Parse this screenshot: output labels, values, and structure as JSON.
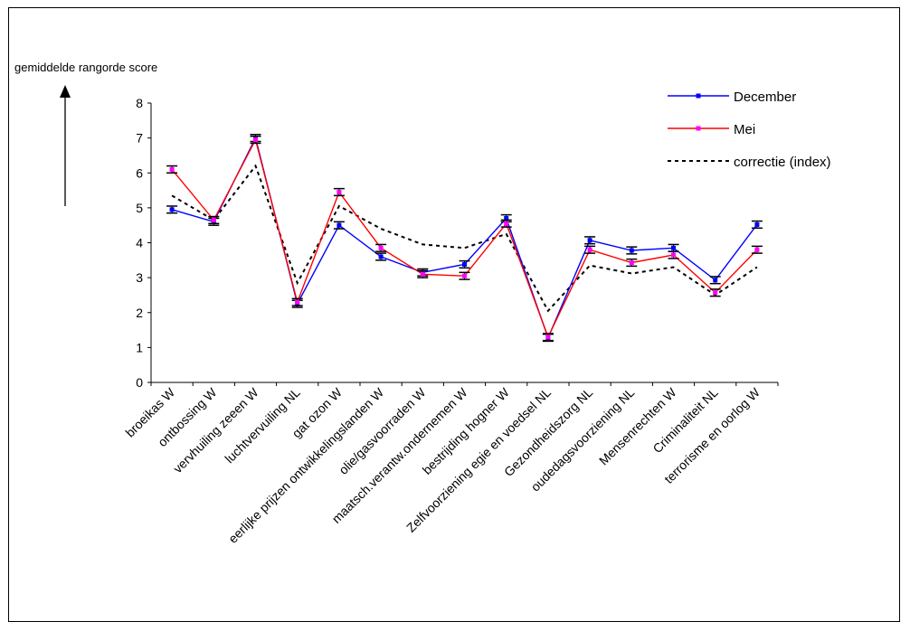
{
  "chart_data": {
    "type": "line",
    "ylabel": "gemiddelde rangorde score",
    "ylim": [
      0,
      8
    ],
    "yticks": [
      0,
      1,
      2,
      3,
      4,
      5,
      6,
      7,
      8
    ],
    "categories": [
      "broeikas W",
      "ontbossing W",
      "vervhuiling zeeen W",
      "luchtvervuiling NL",
      "gat ozon W",
      "eerlijke prijzen ontwikkelingslanden W",
      "olie/gasvoorraden W",
      "maatsch.verantw.ondernemen W",
      "bestrijding hogner W",
      "Zelfvoorziening egie en voedsel NL",
      "Gezondheidszorg NL",
      "oudedagsvoorziening NL",
      "Mensenrechten W",
      "Criminaliteit NL",
      "terrorisme en oorlog W"
    ],
    "series": [
      {
        "name": "December",
        "color": "#0000ff",
        "marker_color": "#0000ff",
        "style": "solid",
        "values": [
          4.95,
          4.6,
          7.0,
          2.25,
          4.5,
          3.6,
          3.15,
          3.38,
          4.7,
          1.28,
          4.07,
          3.78,
          3.85,
          2.93,
          4.52
        ]
      },
      {
        "name": "Mei",
        "color": "#ff0000",
        "marker_color": "#ff00ff",
        "style": "solid",
        "values": [
          6.1,
          4.65,
          6.95,
          2.3,
          5.45,
          3.85,
          3.1,
          3.05,
          4.55,
          1.3,
          3.8,
          3.43,
          3.65,
          2.57,
          3.8
        ]
      },
      {
        "name": "correctie (index)",
        "color": "#000000",
        "style": "dashed",
        "values": [
          5.35,
          4.65,
          6.2,
          2.85,
          5.05,
          4.4,
          3.95,
          3.85,
          4.25,
          2.05,
          3.35,
          3.12,
          3.3,
          2.5,
          3.3
        ]
      }
    ],
    "error_bar": 0.1,
    "legend_position": "top-right",
    "grid": false
  }
}
